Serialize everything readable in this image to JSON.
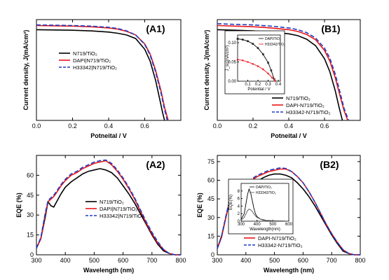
{
  "chart_data": [
    {
      "panel": "(A1)",
      "type": "line",
      "xlabel": "Potneital / V",
      "ylabel": "Current density, J(mA/cm²)",
      "xlim": [
        0,
        0.8
      ],
      "ylim": [
        0,
        17
      ],
      "xticks": [
        {
          "v": 0,
          "t": "0.0"
        },
        {
          "v": 0.2,
          "t": "0.2"
        },
        {
          "v": 0.4,
          "t": "0.4"
        },
        {
          "v": 0.6,
          "t": "0.6"
        }
      ],
      "legend_position": "center-left",
      "series": [
        {
          "name": "N719/TiO₂",
          "color": "#000000",
          "dash": "none",
          "x": [
            0,
            0.1,
            0.2,
            0.3,
            0.4,
            0.45,
            0.5,
            0.55,
            0.6,
            0.63,
            0.66,
            0.68,
            0.7,
            0.71
          ],
          "y": [
            15.3,
            15.25,
            15.2,
            15.1,
            14.9,
            14.7,
            14.4,
            13.8,
            12.0,
            10.0,
            6.8,
            4.0,
            1.2,
            0
          ]
        },
        {
          "name": "DAPI|N719/TiO₂",
          "color": "#e8161a",
          "dash": "none",
          "x": [
            0,
            0.1,
            0.2,
            0.3,
            0.4,
            0.45,
            0.5,
            0.55,
            0.6,
            0.63,
            0.66,
            0.69,
            0.71,
            0.73
          ],
          "y": [
            16.0,
            15.95,
            15.9,
            15.8,
            15.6,
            15.4,
            15.0,
            14.4,
            12.9,
            11.2,
            8.5,
            5.0,
            2.2,
            0
          ]
        },
        {
          "name": "H33342|N719/TiO₂",
          "color": "#1f3cc4",
          "dash": "6,3",
          "x": [
            0,
            0.1,
            0.2,
            0.3,
            0.4,
            0.45,
            0.5,
            0.55,
            0.6,
            0.63,
            0.66,
            0.69,
            0.71,
            0.725
          ],
          "y": [
            16.1,
            16.05,
            16.0,
            15.9,
            15.7,
            15.5,
            15.1,
            14.4,
            12.8,
            11.0,
            8.2,
            4.6,
            1.8,
            0
          ]
        }
      ]
    },
    {
      "panel": "(B1)",
      "type": "line",
      "xlabel": "Potneital / V",
      "ylabel": "Current density, J(mA/cm²)",
      "xlim": [
        0,
        0.8
      ],
      "ylim": [
        0,
        17
      ],
      "xticks": [
        {
          "v": 0,
          "t": "0.0"
        },
        {
          "v": 0.2,
          "t": "0.2"
        },
        {
          "v": 0.4,
          "t": "0.4"
        },
        {
          "v": 0.6,
          "t": "0.6"
        }
      ],
      "legend_position": "lower-right",
      "series": [
        {
          "name": "N719/TiO₂",
          "color": "#000000",
          "dash": "none",
          "x": [
            0,
            0.1,
            0.2,
            0.3,
            0.4,
            0.45,
            0.5,
            0.55,
            0.6,
            0.63,
            0.66,
            0.68,
            0.7
          ],
          "y": [
            15.3,
            15.2,
            15.1,
            14.9,
            14.6,
            14.3,
            13.7,
            12.6,
            10.4,
            8.2,
            5.0,
            2.4,
            0
          ]
        },
        {
          "name": "DAPI-N719/TiO₂",
          "color": "#e8161a",
          "dash": "none",
          "x": [
            0,
            0.1,
            0.2,
            0.3,
            0.4,
            0.45,
            0.5,
            0.55,
            0.6,
            0.63,
            0.66,
            0.69,
            0.71,
            0.73
          ],
          "y": [
            16.0,
            15.9,
            15.8,
            15.6,
            15.3,
            15.0,
            14.5,
            13.6,
            11.8,
            10.0,
            7.2,
            3.8,
            1.6,
            0
          ]
        },
        {
          "name": "H33342-N719/TiO₂",
          "color": "#1f3cc4",
          "dash": "6,3",
          "x": [
            0,
            0.1,
            0.2,
            0.3,
            0.4,
            0.45,
            0.5,
            0.55,
            0.6,
            0.63,
            0.66,
            0.69,
            0.71,
            0.735
          ],
          "y": [
            16.3,
            16.2,
            16.1,
            15.9,
            15.6,
            15.3,
            14.8,
            13.9,
            12.2,
            10.5,
            7.8,
            4.4,
            2.0,
            0
          ]
        }
      ],
      "inset": {
        "type": "line",
        "xlabel": "Potential / V",
        "ylabel": "J_sc(mA/cm²)",
        "xlim": [
          0,
          0.42
        ],
        "ylim": [
          0,
          0.12
        ],
        "xticks": [
          {
            "v": 0.1,
            "t": "0.1"
          },
          {
            "v": 0.2,
            "t": "0.2"
          },
          {
            "v": 0.3,
            "t": "0.3"
          },
          {
            "v": 0.4,
            "t": "0.4"
          }
        ],
        "yticks": [
          {
            "v": 0,
            "t": "0.00"
          },
          {
            "v": 0.05,
            "t": "0.05"
          },
          {
            "v": 0.1,
            "t": "0.10"
          }
        ],
        "series": [
          {
            "name": "DAPI/TiO₂",
            "color": "#000000",
            "marker": "square",
            "x": [
              0,
              0.05,
              0.1,
              0.15,
              0.2,
              0.25,
              0.3,
              0.33,
              0.36
            ],
            "y": [
              0.11,
              0.108,
              0.104,
              0.097,
              0.086,
              0.07,
              0.048,
              0.028,
              0.005
            ]
          },
          {
            "name": "H33342/TiO₂",
            "color": "#e8161a",
            "marker": "circle",
            "x": [
              0,
              0.05,
              0.1,
              0.15,
              0.2,
              0.25,
              0.3,
              0.34,
              0.37
            ],
            "y": [
              0.056,
              0.054,
              0.05,
              0.045,
              0.039,
              0.031,
              0.02,
              0.009,
              0.001
            ]
          }
        ]
      }
    },
    {
      "panel": "(A2)",
      "type": "line",
      "xlabel": "Wavelength (nm)",
      "ylabel": "EQE (%)",
      "xlim": [
        300,
        800
      ],
      "ylim": [
        0,
        75
      ],
      "xticks": [
        {
          "v": 300,
          "t": "300"
        },
        {
          "v": 400,
          "t": "400"
        },
        {
          "v": 500,
          "t": "500"
        },
        {
          "v": 600,
          "t": "600"
        },
        {
          "v": 700,
          "t": "700"
        },
        {
          "v": 800,
          "t": "800"
        }
      ],
      "yticks": [
        {
          "v": 0,
          "t": "0"
        },
        {
          "v": 15,
          "t": "15"
        },
        {
          "v": 30,
          "t": "30"
        },
        {
          "v": 45,
          "t": "45"
        },
        {
          "v": 60,
          "t": "60"
        }
      ],
      "legend_position": "center-right",
      "series": [
        {
          "name": "N719/TiO₂",
          "color": "#000000",
          "dash": "none",
          "x": [
            300,
            315,
            330,
            340,
            350,
            360,
            370,
            385,
            400,
            420,
            440,
            460,
            480,
            500,
            520,
            540,
            560,
            580,
            600,
            620,
            640,
            660,
            680,
            700,
            720,
            740,
            760,
            780,
            800
          ],
          "y": [
            5,
            12,
            28,
            40,
            37,
            36,
            40,
            46,
            51,
            55,
            58,
            61,
            63,
            64,
            65,
            64,
            62,
            58,
            52,
            46,
            39,
            31,
            23,
            15,
            8,
            3,
            1,
            0,
            0
          ]
        },
        {
          "name": "DAPI|N719/TiO₂",
          "color": "#e8161a",
          "dash": "none",
          "x": [
            300,
            315,
            330,
            340,
            350,
            360,
            370,
            385,
            400,
            420,
            440,
            460,
            480,
            500,
            520,
            540,
            560,
            580,
            600,
            620,
            640,
            660,
            680,
            700,
            720,
            740,
            760,
            780,
            800
          ],
          "y": [
            5,
            12,
            30,
            40,
            42,
            44,
            47,
            52,
            56,
            60,
            62,
            65,
            67,
            69,
            70,
            71,
            68,
            63,
            57,
            50,
            42,
            33,
            24,
            16,
            9,
            4,
            1,
            0,
            0
          ]
        },
        {
          "name": "H33342|N719/TiO₂",
          "color": "#1f3cc4",
          "dash": "6,3",
          "x": [
            300,
            315,
            330,
            340,
            350,
            360,
            370,
            385,
            400,
            420,
            440,
            460,
            480,
            500,
            520,
            540,
            560,
            580,
            600,
            620,
            640,
            660,
            680,
            700,
            720,
            740,
            760,
            780,
            800
          ],
          "y": [
            5,
            13,
            31,
            41,
            43,
            45,
            48,
            53,
            57,
            61,
            63,
            66,
            68,
            70,
            71,
            71.5,
            69,
            64,
            58,
            51,
            43,
            34,
            25,
            17,
            10,
            4,
            1,
            0,
            0
          ]
        }
      ]
    },
    {
      "panel": "(B2)",
      "type": "line",
      "xlabel": "Wavelength (nm)",
      "ylabel": "EQE (%)",
      "xlim": [
        300,
        800
      ],
      "ylim": [
        0,
        80
      ],
      "xticks": [
        {
          "v": 300,
          "t": "300"
        },
        {
          "v": 400,
          "t": "400"
        },
        {
          "v": 500,
          "t": "500"
        },
        {
          "v": 600,
          "t": "600"
        },
        {
          "v": 700,
          "t": "700"
        },
        {
          "v": 800,
          "t": "800"
        }
      ],
      "yticks": [
        {
          "v": 0,
          "t": "0"
        },
        {
          "v": 15,
          "t": "15"
        },
        {
          "v": 30,
          "t": "30"
        },
        {
          "v": 45,
          "t": "45"
        },
        {
          "v": 60,
          "t": "60"
        },
        {
          "v": 75,
          "t": "75"
        }
      ],
      "legend_position": "lower-center",
      "series": [
        {
          "name": "N719/TiO₂",
          "color": "#000000",
          "dash": "none",
          "x": [
            300,
            315,
            330,
            340,
            350,
            360,
            370,
            385,
            400,
            420,
            440,
            460,
            480,
            500,
            520,
            540,
            560,
            580,
            600,
            620,
            640,
            660,
            680,
            700,
            720,
            740,
            760,
            780,
            800
          ],
          "y": [
            5,
            15,
            30,
            40,
            37,
            36,
            39,
            45,
            50,
            55,
            59,
            62,
            64,
            65,
            65,
            64,
            62,
            58,
            53,
            47,
            40,
            32,
            24,
            16,
            9,
            3,
            1,
            0,
            0
          ]
        },
        {
          "name": "DAPI-N719/TiO₂",
          "color": "#e8161a",
          "dash": "none",
          "x": [
            300,
            315,
            330,
            340,
            350,
            360,
            370,
            385,
            400,
            420,
            440,
            460,
            480,
            500,
            520,
            540,
            560,
            580,
            600,
            620,
            640,
            660,
            680,
            700,
            720,
            740,
            760,
            780,
            800
          ],
          "y": [
            5,
            14,
            30,
            40,
            43,
            45,
            48,
            52,
            56,
            60,
            63,
            65,
            67,
            68,
            69,
            69,
            67,
            63,
            58,
            51,
            43,
            34,
            25,
            17,
            10,
            4,
            1,
            0,
            0
          ]
        },
        {
          "name": "H33342-N719/TiO₂",
          "color": "#1f3cc4",
          "dash": "6,3",
          "x": [
            300,
            315,
            330,
            340,
            350,
            360,
            370,
            385,
            400,
            420,
            440,
            460,
            480,
            500,
            520,
            540,
            560,
            580,
            600,
            620,
            640,
            660,
            680,
            700,
            720,
            740,
            760,
            780,
            800
          ],
          "y": [
            5,
            15,
            31,
            41,
            44,
            46,
            49,
            53,
            57,
            61,
            64,
            66,
            68,
            69,
            70,
            69.5,
            67,
            63,
            58,
            51,
            43,
            34,
            25,
            17,
            10,
            4,
            1,
            0,
            0
          ]
        }
      ],
      "inset": {
        "type": "line",
        "xlabel": "Wavelength(nm)",
        "ylabel": "EQE(%)",
        "xlim": [
          300,
          600
        ],
        "ylim": [
          0,
          10
        ],
        "xticks": [
          {
            "v": 300,
            "t": "300"
          },
          {
            "v": 400,
            "t": "400"
          },
          {
            "v": 500,
            "t": "500"
          },
          {
            "v": 600,
            "t": "600"
          }
        ],
        "yticks": [
          {
            "v": 0,
            "t": "0"
          },
          {
            "v": 2,
            "t": "2"
          },
          {
            "v": 4,
            "t": "4"
          },
          {
            "v": 6,
            "t": "6"
          },
          {
            "v": 8,
            "t": "8"
          }
        ],
        "series": [
          {
            "name": "DAPI/TiO₂",
            "color": "#000000",
            "marker": "none",
            "x": [
              300,
              320,
              340,
              350,
              360,
              370,
              380,
              390,
              400,
              420,
              440,
              460,
              500,
              550,
              600
            ],
            "y": [
              0.5,
              2,
              7,
              8.5,
              7.5,
              5.5,
              3.5,
              2,
              1.2,
              0.6,
              0.3,
              0.2,
              0.1,
              0.05,
              0
            ]
          },
          {
            "name": "H33342/TiO₂",
            "color": "#555555",
            "marker": "none",
            "x": [
              300,
              320,
              340,
              350,
              360,
              370,
              380,
              390,
              400,
              420,
              440,
              460,
              500,
              550,
              600
            ],
            "y": [
              0.3,
              1,
              2.8,
              3.2,
              3,
              2.6,
              2,
              1.4,
              1,
              0.6,
              0.4,
              0.2,
              0.1,
              0.05,
              0
            ]
          }
        ]
      }
    }
  ]
}
